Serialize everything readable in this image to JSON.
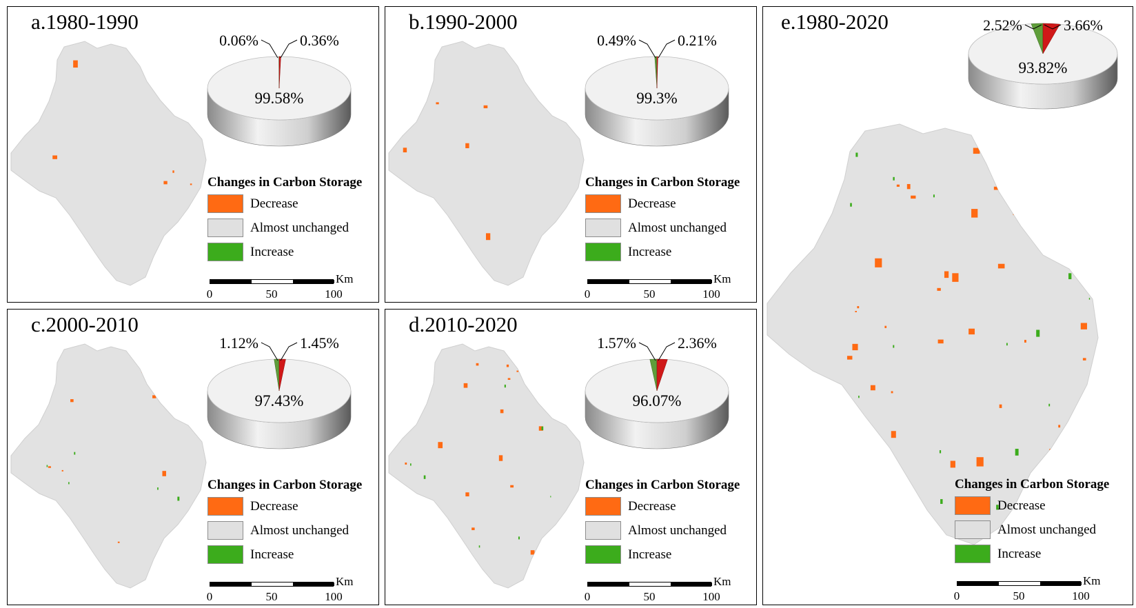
{
  "legend": {
    "title": "Changes in Carbon Storage",
    "items": [
      {
        "label": "Decrease",
        "color": "#ff6a13"
      },
      {
        "label": "Almost unchanged",
        "color": "#e0e0e0"
      },
      {
        "label": "Increase",
        "color": "#3cac1c"
      }
    ]
  },
  "scalebar": {
    "unit": "Km",
    "ticks": [
      "0",
      "50",
      "100"
    ]
  },
  "colors": {
    "pie_increase": "#5f9e3a",
    "pie_decrease": "#d01818",
    "map_base": "#e2e2e2"
  },
  "panels": [
    {
      "title": "a.1980-1990",
      "pie": {
        "unchanged": "99.58%",
        "increase": "0.06%",
        "decrease": "0.36%",
        "increase_value": 0.06,
        "decrease_value": 0.36
      }
    },
    {
      "title": "b.1990-2000",
      "pie": {
        "unchanged": "99.3%",
        "increase": "0.49%",
        "decrease": "0.21%",
        "increase_value": 0.49,
        "decrease_value": 0.21
      }
    },
    {
      "title": "c.2000-2010",
      "pie": {
        "unchanged": "97.43%",
        "increase": "1.12%",
        "decrease": "1.45%",
        "increase_value": 1.12,
        "decrease_value": 1.45
      }
    },
    {
      "title": "d.2010-2020",
      "pie": {
        "unchanged": "96.07%",
        "increase": "1.57%",
        "decrease": "2.36%",
        "increase_value": 1.57,
        "decrease_value": 2.36
      }
    },
    {
      "title": "e.1980-2020",
      "pie": {
        "unchanged": "93.82%",
        "increase": "2.52%",
        "decrease": "3.66%",
        "increase_value": 2.52,
        "decrease_value": 3.66
      }
    }
  ]
}
